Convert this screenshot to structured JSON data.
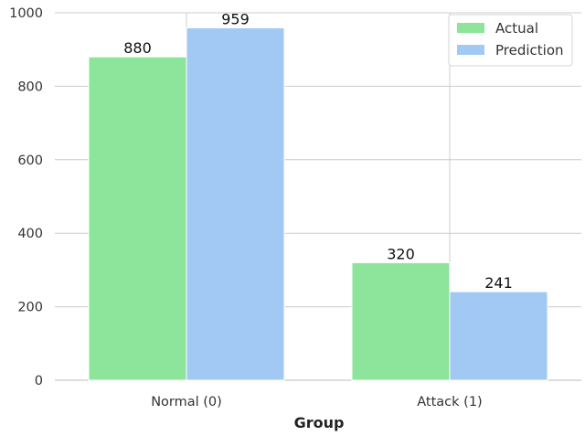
{
  "chart_data": {
    "type": "bar",
    "title": "",
    "xlabel": "Group",
    "ylabel": "",
    "categories": [
      "Normal (0)",
      "Attack (1)"
    ],
    "series": [
      {
        "name": "Actual",
        "values": [
          880,
          320
        ],
        "color": "#8de59c"
      },
      {
        "name": "Prediction",
        "values": [
          959,
          241
        ],
        "color": "#a1c9f4"
      }
    ],
    "ylim": [
      0,
      1000
    ],
    "yticks": [
      0,
      200,
      400,
      600,
      800,
      1000
    ],
    "grid": true,
    "legend_position": "top-right",
    "data_labels": true
  }
}
